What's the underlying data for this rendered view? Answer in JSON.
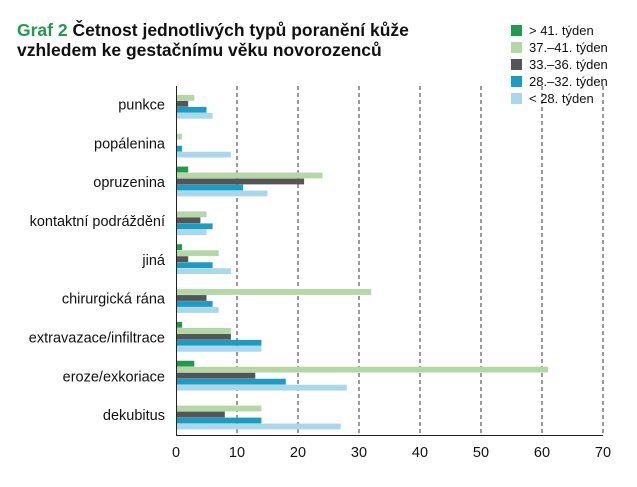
{
  "chart_data": {
    "type": "bar",
    "figure_label": "Graf 2",
    "title_lines": [
      "Četnost jednotlivých typů poranění kůže",
      "vzhledem ke gestačnímu věku novorozenců"
    ],
    "categories": [
      "punkce",
      "popálenina",
      "opruzenina",
      "kontaktní podráždění",
      "jiná",
      "chirurgická rána",
      "extravazace/infiltrace",
      "eroze/exkoriace",
      "dekubitus"
    ],
    "series": [
      {
        "name": "> 41. týden",
        "color": "#1f9a4e",
        "values": [
          0,
          0,
          2,
          0,
          1,
          0,
          1,
          3,
          0
        ]
      },
      {
        "name": "37.–41. týden",
        "color": "#b3d8a5",
        "values": [
          3,
          1,
          24,
          5,
          7,
          32,
          9,
          61,
          14
        ]
      },
      {
        "name": "33.–36. týden",
        "color": "#555555",
        "values": [
          2,
          0,
          21,
          4,
          2,
          5,
          9,
          13,
          8
        ]
      },
      {
        "name": "28.–32. týden",
        "color": "#1b9cc3",
        "values": [
          5,
          1,
          11,
          6,
          6,
          6,
          14,
          18,
          14
        ]
      },
      {
        "name": "< 28. týden",
        "color": "#a8d8e9",
        "values": [
          6,
          9,
          15,
          5,
          9,
          7,
          14,
          28,
          27
        ]
      }
    ],
    "xlim": [
      0,
      70
    ],
    "x_ticks": [
      0,
      10,
      20,
      30,
      40,
      50,
      60,
      70
    ],
    "grid": true,
    "legend": "top-right"
  },
  "colors": {
    "figure_label": "#1f9a4e",
    "text": "#111111"
  }
}
